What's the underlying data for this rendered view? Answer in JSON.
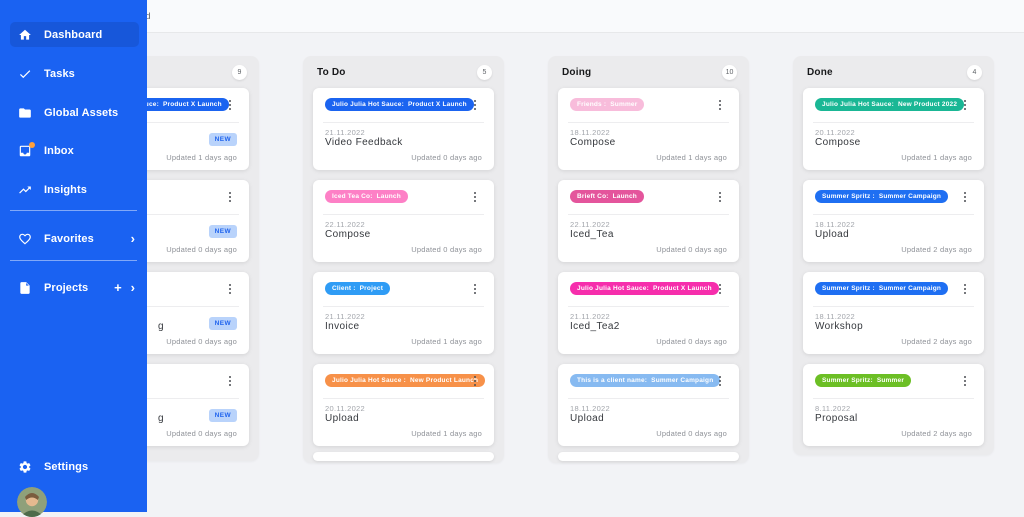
{
  "topbar": {
    "title": "Dashboard"
  },
  "sidebar": {
    "nav_items": [
      {
        "label": "Dashboard",
        "icon": "home-icon",
        "active": true
      },
      {
        "label": "Tasks",
        "icon": "check-icon"
      },
      {
        "label": "Global Assets",
        "icon": "folder-icon"
      },
      {
        "label": "Inbox",
        "icon": "inbox-icon",
        "notification": true
      },
      {
        "label": "Insights",
        "icon": "trend-icon"
      },
      {
        "label": "Favorites",
        "icon": "heart-icon",
        "chevron": "›"
      },
      {
        "label": "Projects",
        "icon": "file-icon",
        "plus": "+",
        "chevron": "›"
      }
    ],
    "settings": {
      "label": "Settings",
      "icon": "gear-icon"
    }
  },
  "board": {
    "columns": [
      {
        "name": "",
        "count": "9",
        "cards": [
          {
            "tag": {
              "text": "Julio Julia Hot Sauce:  Product X Launch",
              "color": "#1b64f0"
            },
            "badge": "NEW",
            "updated": "Updated 1 days ago"
          },
          {
            "badge": "NEW",
            "updated": "Updated 0 days ago"
          },
          {
            "title_fragment": "g",
            "badge": "NEW",
            "updated": "Updated 0 days ago"
          },
          {
            "title_fragment": "g",
            "badge": "NEW",
            "updated": "Updated 0 days ago"
          }
        ]
      },
      {
        "name": "To Do",
        "count": "5",
        "has_peek_card": true,
        "cards": [
          {
            "tag": {
              "text": "Julio Julia Hot Sauce:  Product X Launch",
              "color": "#1b64f0"
            },
            "date": "21.11.2022",
            "title": "Video Feedback",
            "updated": "Updated 0 days ago"
          },
          {
            "tag": {
              "text": "Iced Tea Co:  Launch",
              "color": "#fd80c6"
            },
            "date": "22.11.2022",
            "title": "Compose",
            "updated": "Updated 0 days ago"
          },
          {
            "tag": {
              "text": "Client :  Project",
              "color": "#2f9cf5"
            },
            "date": "21.11.2022",
            "title": "Invoice",
            "updated": "Updated 1 days ago"
          },
          {
            "tag": {
              "text": "Julio Julia Hot Sauce :  New Product Launch",
              "color": "#f79149"
            },
            "date": "20.11.2022",
            "title": "Upload",
            "updated": "Updated 1 days ago"
          }
        ]
      },
      {
        "name": "Doing",
        "count": "10",
        "has_peek_card": true,
        "cards": [
          {
            "tag": {
              "text": "Friends :  Summer",
              "color": "#f8bcdb"
            },
            "date": "18.11.2022",
            "title": "Compose",
            "updated": "Updated 1 days ago"
          },
          {
            "tag": {
              "text": "Brieft Co:  Launch",
              "color": "#e4559c"
            },
            "date": "22.11.2022",
            "title": "Iced_Tea",
            "updated": "Updated 0 days ago"
          },
          {
            "tag": {
              "text": "Julio Julia Hot Sauce:  Product X Launch",
              "color": "#f62eac"
            },
            "date": "21.11.2022",
            "title": "Iced_Tea2",
            "updated": "Updated 0 days ago"
          },
          {
            "tag": {
              "text": "This is a client name:  Summer Campaign",
              "color": "#87baf1"
            },
            "date": "18.11.2022",
            "title": "Upload",
            "updated": "Updated 0 days ago"
          }
        ]
      },
      {
        "name": "Done",
        "count": "4",
        "cards": [
          {
            "tag": {
              "text": "Julio Julia Hot Sauce:  New Product 2022",
              "color": "#1ab795"
            },
            "date": "20.11.2022",
            "title": "Compose",
            "updated": "Updated 1 days ago"
          },
          {
            "tag": {
              "text": "Summer Spritz :  Summer Campaign",
              "color": "#1f6ff2"
            },
            "date": "18.11.2022",
            "title": "Upload",
            "updated": "Updated 2 days ago"
          },
          {
            "tag": {
              "text": "Summer Spritz :  Summer Campaign",
              "color": "#1f6ff2"
            },
            "date": "18.11.2022",
            "title": "Workshop",
            "updated": "Updated 2 days ago"
          },
          {
            "tag": {
              "text": "Summer Spritz:  Summer",
              "color": "#6cbf25"
            },
            "date": "8.11.2022",
            "title": "Proposal",
            "updated": "Updated 2 days ago"
          }
        ]
      }
    ]
  },
  "colors": {
    "sidebar_bg": "#1a62f2",
    "sidebar_active_bg": "#1757da",
    "notification_dot": "#ffa03c",
    "new_badge_bg": "#b9d3fb",
    "new_badge_text": "#2064ee",
    "column_bg": "#ebebed",
    "page_bg": "#f2f3f6"
  }
}
